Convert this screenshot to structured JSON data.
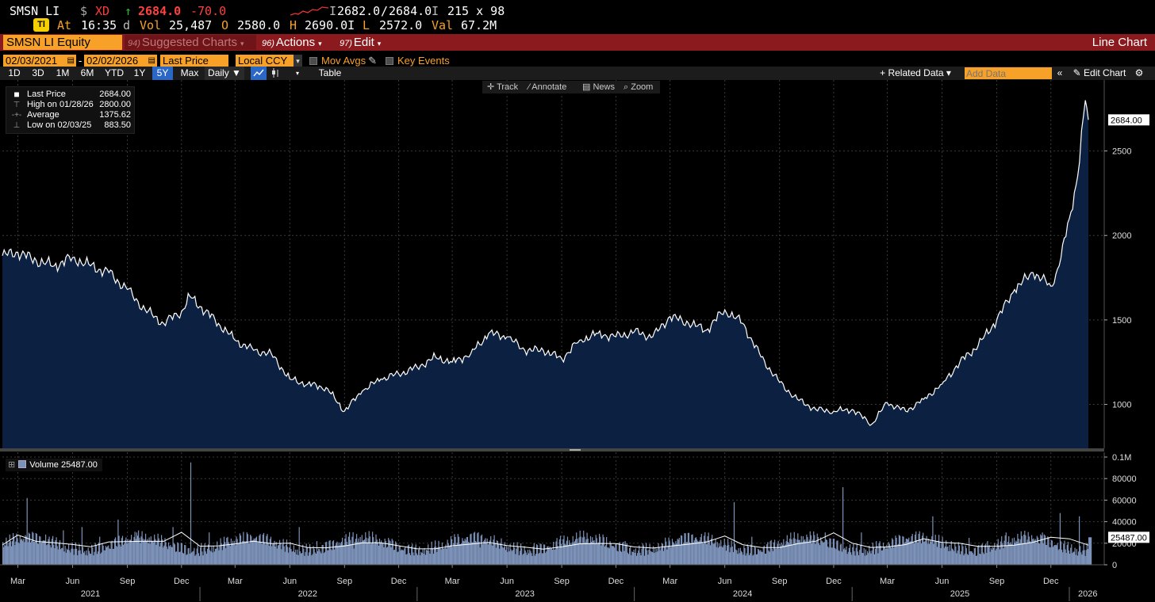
{
  "ticker": {
    "symbol": "SMSN LI",
    "currency": "$",
    "flag": "XD",
    "arrow": "↑",
    "last": "2684.0",
    "change": "-70.0",
    "bid_label": "I",
    "bid": "2682.0",
    "separator": "/",
    "ask": "2684.0",
    "ask_label": "I",
    "size": "215 x 98",
    "badge": "Tl",
    "at_label": "At",
    "time": "16:35",
    "time_suffix": "d",
    "vol_label": "Vol",
    "vol": "25,487",
    "open_label": "O",
    "open": "2580.0",
    "high_label": "H",
    "high": "2690.0I",
    "low_label": "L",
    "low": "2572.0",
    "val_label": "Val",
    "val": "67.2M"
  },
  "header": {
    "security": "SMSN LI Equity",
    "suggested_num": "94)",
    "suggested": "Suggested Charts",
    "actions_num": "96)",
    "actions": "Actions",
    "edit_num": "97)",
    "edit": "Edit",
    "title": "Line Chart"
  },
  "controls": {
    "start_date": "02/03/2021",
    "dash": "-",
    "end_date": "02/02/2026",
    "field": "Last Price",
    "currency": "Local CCY",
    "mov_avgs": "Mov Avgs",
    "key_events": "Key Events"
  },
  "ranges": {
    "items": [
      "1D",
      "3D",
      "1M",
      "6M",
      "YTD",
      "1Y",
      "5Y",
      "Max"
    ],
    "selected": "5Y",
    "period": "Daily ▼",
    "table": "Table",
    "related": "+ Related Data ▾",
    "add_data_placeholder": "Add Data",
    "edit_chart": "Edit Chart"
  },
  "toolbar": {
    "track": "Track",
    "annotate": "Annotate",
    "news": "News",
    "zoom": "Zoom"
  },
  "legend": {
    "last_label": "Last Price",
    "last_value": "2684.00",
    "high_label": "High on 01/28/26",
    "high_value": "2800.00",
    "avg_label": "Average",
    "avg_value": "1375.62",
    "low_label": "Low on 02/03/25",
    "low_value": "883.50"
  },
  "volume_legend": {
    "label": "Volume",
    "value": "25487.00"
  },
  "colors": {
    "accent_orange": "#f7a128",
    "header_red": "#8b1a1f",
    "price_fill": "#0c2142",
    "volume_bar": "#7d92b8",
    "positive_green": "#2ec02e",
    "negative_red": "#ff4040"
  },
  "chart_data": [
    {
      "type": "area",
      "series": [
        {
          "name": "Last Price",
          "x": [
            "2021-02-03",
            "2021-03-01",
            "2021-04-01",
            "2021-05-01",
            "2021-06-01",
            "2021-07-01",
            "2021-08-01",
            "2021-09-01",
            "2021-10-01",
            "2021-11-01",
            "2021-12-01",
            "2021-12-15",
            "2022-01-01",
            "2022-02-01",
            "2022-03-01",
            "2022-04-01",
            "2022-05-01",
            "2022-06-01",
            "2022-07-01",
            "2022-08-01",
            "2022-09-01",
            "2022-10-01",
            "2022-11-01",
            "2022-12-01",
            "2023-01-01",
            "2023-02-01",
            "2023-03-01",
            "2023-04-01",
            "2023-05-01",
            "2023-06-01",
            "2023-07-01",
            "2023-08-01",
            "2023-09-01",
            "2023-10-01",
            "2023-11-01",
            "2023-12-01",
            "2024-01-01",
            "2024-02-01",
            "2024-03-01",
            "2024-04-01",
            "2024-05-01",
            "2024-06-01",
            "2024-07-01",
            "2024-08-01",
            "2024-09-01",
            "2024-10-01",
            "2024-11-01",
            "2024-12-01",
            "2025-01-01",
            "2025-02-03",
            "2025-03-01",
            "2025-04-01",
            "2025-05-01",
            "2025-06-01",
            "2025-07-01",
            "2025-08-01",
            "2025-09-01",
            "2025-10-01",
            "2025-11-01",
            "2025-12-01",
            "2025-12-15",
            "2026-01-01",
            "2026-01-15",
            "2026-01-28",
            "2026-02-02"
          ],
          "values": [
            1880,
            1900,
            1850,
            1820,
            1870,
            1820,
            1780,
            1680,
            1560,
            1480,
            1550,
            1640,
            1580,
            1480,
            1380,
            1320,
            1300,
            1150,
            1120,
            1100,
            960,
            1080,
            1150,
            1180,
            1220,
            1280,
            1250,
            1300,
            1420,
            1400,
            1320,
            1320,
            1270,
            1380,
            1420,
            1400,
            1430,
            1400,
            1520,
            1480,
            1440,
            1560,
            1480,
            1280,
            1130,
            1030,
            970,
            960,
            970,
            883.5,
            1010,
            960,
            1030,
            1120,
            1250,
            1350,
            1500,
            1680,
            1780,
            1700,
            1820,
            2100,
            2350,
            2800,
            2684
          ]
        }
      ],
      "xlabel": "",
      "ylabel": "",
      "y_ticks": [
        1000,
        1500,
        2000,
        2500
      ],
      "ylim": [
        740,
        2920
      ],
      "x_ticks_months": [
        "Mar",
        "Jun",
        "Sep",
        "Dec",
        "Mar",
        "Jun",
        "Sep",
        "Dec",
        "Mar",
        "Jun",
        "Sep",
        "Dec",
        "Mar",
        "Jun",
        "Sep",
        "Dec",
        "Mar",
        "Jun",
        "Sep",
        "Dec"
      ],
      "x_tick_dates": [
        "2021-03-01",
        "2021-06-01",
        "2021-09-01",
        "2021-12-01",
        "2022-03-01",
        "2022-06-01",
        "2022-09-01",
        "2022-12-01",
        "2023-03-01",
        "2023-06-01",
        "2023-09-01",
        "2023-12-01",
        "2024-03-01",
        "2024-06-01",
        "2024-09-01",
        "2024-12-01",
        "2025-03-01",
        "2025-06-01",
        "2025-09-01",
        "2025-12-01"
      ],
      "x_years": [
        "2021",
        "2022",
        "2023",
        "2024",
        "2025",
        "2026"
      ],
      "year_dates": [
        "2021-07-01",
        "2022-07-01",
        "2023-07-01",
        "2024-07-01",
        "2025-07-01",
        "2026-02-01"
      ],
      "year_separators": [
        "2022-01-01",
        "2023-01-01",
        "2024-01-01",
        "2025-01-01",
        "2026-01-01"
      ],
      "last_value_label": "2684.00",
      "grid": true
    },
    {
      "type": "bar",
      "series": [
        {
          "name": "Volume",
          "x": [
            "2021-02-03",
            "2021-03-01",
            "2021-04-01",
            "2021-05-01",
            "2021-06-01",
            "2021-07-01",
            "2021-08-01",
            "2021-09-01",
            "2021-10-01",
            "2021-11-01",
            "2021-12-01",
            "2022-01-01",
            "2022-02-01",
            "2022-03-01",
            "2022-04-01",
            "2022-05-01",
            "2022-06-01",
            "2022-07-01",
            "2022-08-01",
            "2022-09-01",
            "2022-10-01",
            "2022-11-01",
            "2022-12-01",
            "2023-01-01",
            "2023-02-01",
            "2023-03-01",
            "2023-04-01",
            "2023-05-01",
            "2023-06-01",
            "2023-07-01",
            "2023-08-01",
            "2023-09-01",
            "2023-10-01",
            "2023-11-01",
            "2023-12-01",
            "2024-01-01",
            "2024-02-01",
            "2024-03-01",
            "2024-04-01",
            "2024-05-01",
            "2024-06-01",
            "2024-07-01",
            "2024-08-01",
            "2024-09-01",
            "2024-10-01",
            "2024-11-01",
            "2024-12-01",
            "2025-01-01",
            "2025-02-01",
            "2025-03-01",
            "2025-04-01",
            "2025-05-01",
            "2025-06-01",
            "2025-07-01",
            "2025-08-01",
            "2025-09-01",
            "2025-10-01",
            "2025-11-01",
            "2025-12-01",
            "2026-01-01",
            "2026-02-02"
          ],
          "values": [
            22000,
            62000,
            28000,
            32000,
            35000,
            26000,
            42000,
            30000,
            28000,
            35000,
            95000,
            30000,
            25000,
            22000,
            28000,
            20000,
            35000,
            22000,
            18000,
            15000,
            20000,
            22000,
            18000,
            14000,
            15000,
            20000,
            16000,
            22000,
            15000,
            20000,
            14000,
            18000,
            20000,
            16000,
            22000,
            18000,
            20000,
            25000,
            22000,
            24000,
            58000,
            26000,
            22000,
            20000,
            28000,
            30000,
            72000,
            30000,
            20000,
            25000,
            28000,
            45000,
            22000,
            25000,
            22000,
            30000,
            28000,
            30000,
            48000,
            45000,
            25487
          ]
        }
      ],
      "y_ticks": [
        "0",
        "20000",
        "40000",
        "60000",
        "80000",
        "0.1M"
      ],
      "ylim": [
        0,
        100000
      ],
      "last_value_label": "25487.00"
    }
  ]
}
